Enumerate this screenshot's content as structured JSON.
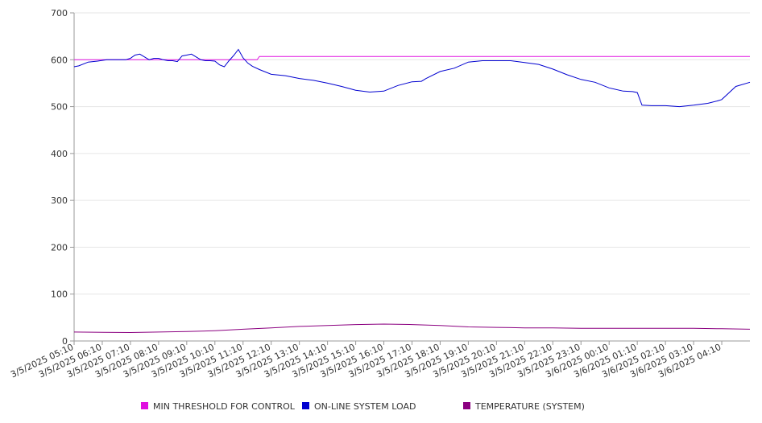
{
  "chart_data": {
    "type": "line",
    "title": "",
    "xlabel": "",
    "ylabel": "",
    "ylim": [
      0,
      700
    ],
    "yticks": [
      0,
      100,
      200,
      300,
      400,
      500,
      600,
      700
    ],
    "grid": true,
    "legend_position": "bottom",
    "x_tick_labels": [
      "3/5/2025 05:10",
      "3/5/2025 06:10",
      "3/5/2025 07:10",
      "3/5/2025 08:10",
      "3/5/2025 09:10",
      "3/5/2025 10:10",
      "3/5/2025 11:10",
      "3/5/2025 12:10",
      "3/5/2025 13:10",
      "3/5/2025 14:10",
      "3/5/2025 15:10",
      "3/5/2025 16:10",
      "3/5/2025 17:10",
      "3/5/2025 18:10",
      "3/5/2025 19:10",
      "3/5/2025 20:10",
      "3/5/2025 21:10",
      "3/5/2025 22:10",
      "3/5/2025 23:10",
      "3/6/2025 00:10",
      "3/6/2025 01:10",
      "3/6/2025 02:10",
      "3/6/2025 03:10",
      "3/6/2025 04:10"
    ],
    "series": [
      {
        "name": "MIN THRESHOLD FOR CONTROL",
        "color": "#e010e0",
        "x": [
          "3/5/2025 05:10",
          "3/5/2025 11:40",
          "3/5/2025 11:45",
          "3/6/2025 05:10"
        ],
        "values": [
          600,
          600,
          607,
          607
        ]
      },
      {
        "name": "ON-LINE SYSTEM LOAD",
        "color": "#0000d0",
        "x": [
          "3/5/2025 05:10",
          "3/5/2025 05:20",
          "3/5/2025 05:40",
          "3/5/2025 06:00",
          "3/5/2025 06:20",
          "3/5/2025 06:40",
          "3/5/2025 07:00",
          "3/5/2025 07:10",
          "3/5/2025 07:20",
          "3/5/2025 07:30",
          "3/5/2025 07:40",
          "3/5/2025 07:50",
          "3/5/2025 08:00",
          "3/5/2025 08:10",
          "3/5/2025 08:20",
          "3/5/2025 08:30",
          "3/5/2025 08:40",
          "3/5/2025 08:50",
          "3/5/2025 09:00",
          "3/5/2025 09:10",
          "3/5/2025 09:20",
          "3/5/2025 09:30",
          "3/5/2025 09:40",
          "3/5/2025 09:50",
          "3/5/2025 10:00",
          "3/5/2025 10:10",
          "3/5/2025 10:20",
          "3/5/2025 10:30",
          "3/5/2025 10:40",
          "3/5/2025 10:50",
          "3/5/2025 11:00",
          "3/5/2025 11:10",
          "3/5/2025 11:20",
          "3/5/2025 11:30",
          "3/5/2025 11:45",
          "3/5/2025 12:10",
          "3/5/2025 12:40",
          "3/5/2025 13:10",
          "3/5/2025 13:40",
          "3/5/2025 14:10",
          "3/5/2025 14:40",
          "3/5/2025 15:10",
          "3/5/2025 15:40",
          "3/5/2025 16:10",
          "3/5/2025 16:40",
          "3/5/2025 17:10",
          "3/5/2025 17:30",
          "3/5/2025 17:40",
          "3/5/2025 18:10",
          "3/5/2025 18:40",
          "3/5/2025 19:10",
          "3/5/2025 19:40",
          "3/5/2025 20:10",
          "3/5/2025 20:40",
          "3/5/2025 21:10",
          "3/5/2025 21:40",
          "3/5/2025 22:10",
          "3/5/2025 22:40",
          "3/5/2025 23:10",
          "3/5/2025 23:40",
          "3/6/2025 00:10",
          "3/6/2025 00:40",
          "3/6/2025 01:00",
          "3/6/2025 01:10",
          "3/6/2025 01:20",
          "3/6/2025 01:40",
          "3/6/2025 02:10",
          "3/6/2025 02:40",
          "3/6/2025 03:10",
          "3/6/2025 03:40",
          "3/6/2025 04:00",
          "3/6/2025 04:10",
          "3/6/2025 04:40",
          "3/6/2025 05:10"
        ],
        "values": [
          585,
          587,
          595,
          597,
          600,
          600,
          600,
          603,
          610,
          612,
          606,
          600,
          603,
          603,
          600,
          598,
          598,
          596,
          608,
          610,
          612,
          606,
          600,
          598,
          598,
          597,
          589,
          585,
          598,
          609,
          622,
          604,
          593,
          586,
          579,
          569,
          566,
          560,
          556,
          550,
          543,
          535,
          531,
          533,
          545,
          553,
          554,
          560,
          575,
          582,
          595,
          598,
          598,
          598,
          594,
          590,
          580,
          568,
          558,
          552,
          540,
          533,
          532,
          530,
          503,
          502,
          502,
          500,
          503,
          507,
          512,
          515,
          543,
          552
        ]
      },
      {
        "name": "TEMPERATURE (SYSTEM)",
        "color": "#8b0080",
        "x": [
          "3/5/2025 05:10",
          "3/5/2025 07:10",
          "3/5/2025 09:10",
          "3/5/2025 10:10",
          "3/5/2025 11:10",
          "3/5/2025 12:10",
          "3/5/2025 13:10",
          "3/5/2025 14:10",
          "3/5/2025 15:10",
          "3/5/2025 16:10",
          "3/5/2025 17:10",
          "3/5/2025 18:10",
          "3/5/2025 19:10",
          "3/5/2025 20:10",
          "3/5/2025 21:10",
          "3/5/2025 22:10",
          "3/5/2025 23:10",
          "3/6/2025 00:10",
          "3/6/2025 01:10",
          "3/6/2025 02:10",
          "3/6/2025 03:10",
          "3/6/2025 04:10",
          "3/6/2025 05:10"
        ],
        "values": [
          19,
          18,
          20,
          22,
          25,
          28,
          31,
          33,
          35,
          36,
          35,
          33,
          30,
          29,
          28,
          28,
          27,
          27,
          27,
          27,
          27,
          26,
          25
        ]
      }
    ]
  }
}
